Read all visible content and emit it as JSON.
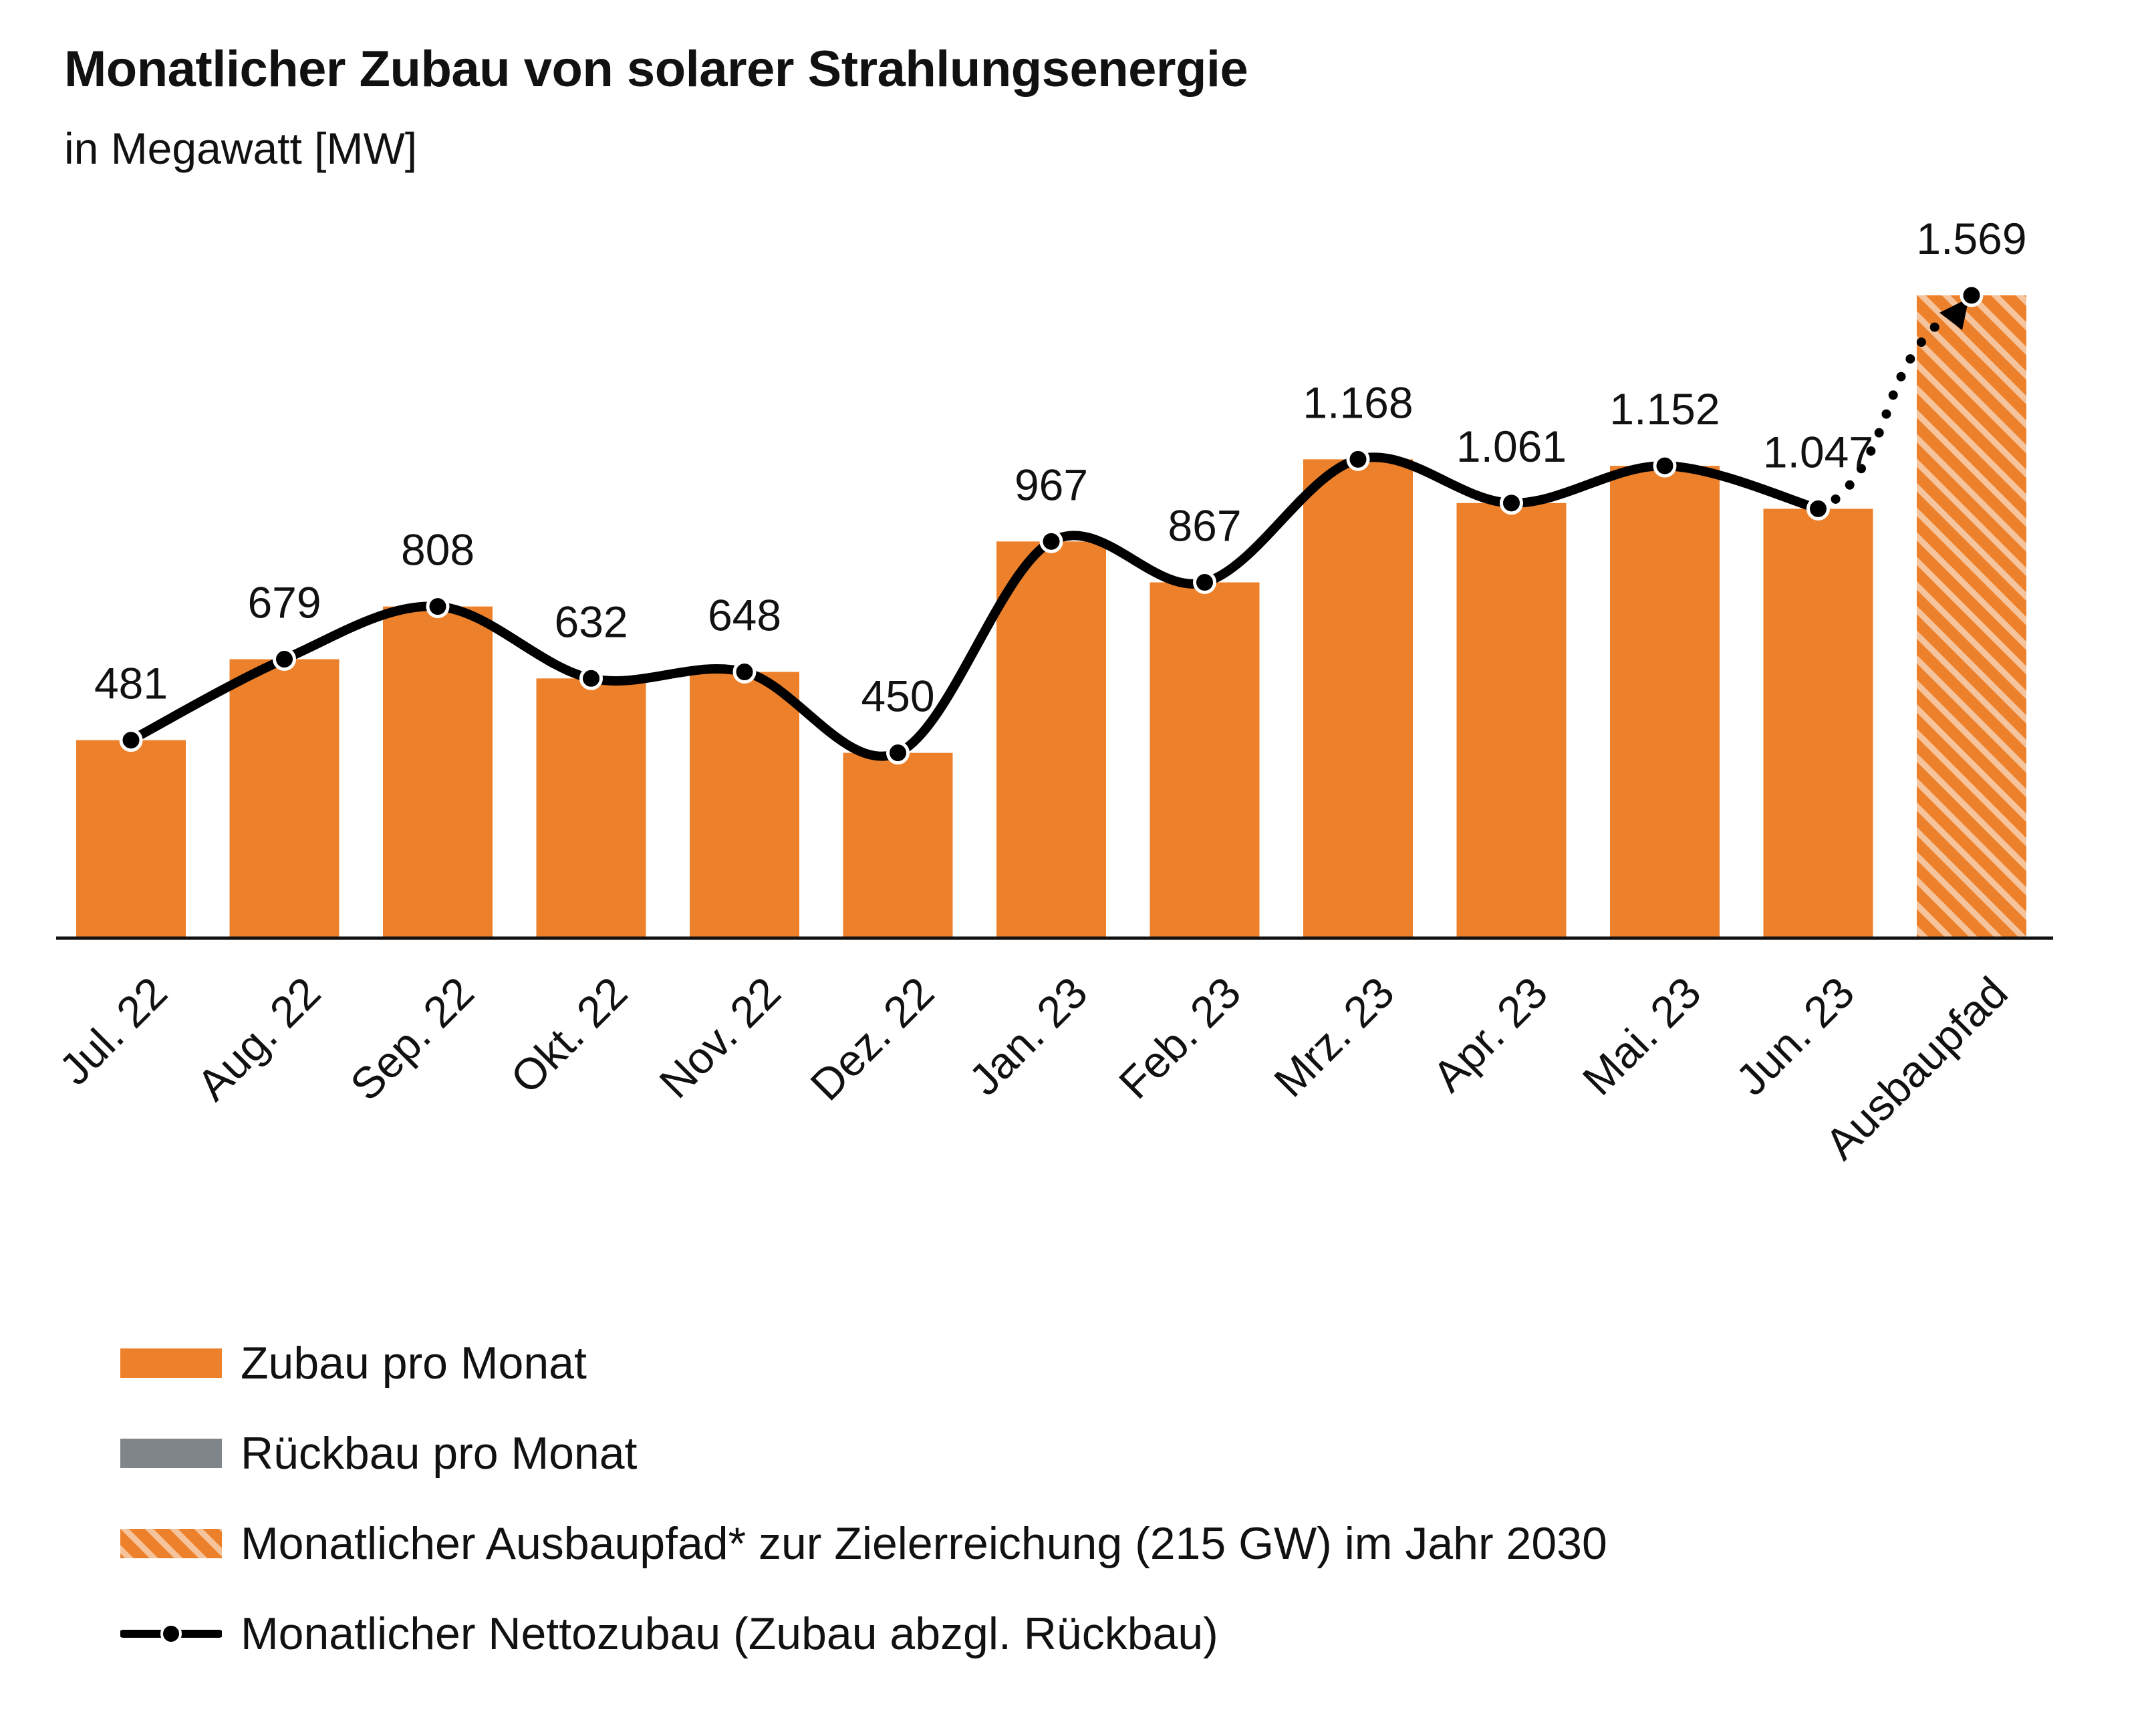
{
  "title": "Monatlicher Zubau von solarer Strahlungsenergie",
  "subtitle": "in Megawatt [MW]",
  "colors": {
    "bar": "#ed812b",
    "rueckbau": "#7f8589",
    "line": "#000000",
    "hatch_light": "#f6b98a"
  },
  "chart_data": {
    "type": "bar",
    "categories": [
      "Jul. 22",
      "Aug. 22",
      "Sep. 22",
      "Okt. 22",
      "Nov. 22",
      "Dez. 22",
      "Jan. 23",
      "Feb. 23",
      "Mrz. 23",
      "Apr. 23",
      "Mai. 23",
      "Jun. 23",
      "Ausbaupfad"
    ],
    "series": [
      {
        "name": "Zubau pro Monat",
        "values": [
          481,
          679,
          808,
          632,
          648,
          450,
          967,
          867,
          1168,
          1061,
          1152,
          1047,
          null
        ]
      },
      {
        "name": "Monatlicher Ausbaupfad* zur Zielerreichung (215 GW) im Jahr 2030",
        "values": [
          null,
          null,
          null,
          null,
          null,
          null,
          null,
          null,
          null,
          null,
          null,
          null,
          1569
        ]
      },
      {
        "name": "Monatlicher Nettozubau (Zubau abzgl. Rückbau)",
        "values": [
          481,
          679,
          808,
          632,
          648,
          450,
          967,
          867,
          1168,
          1061,
          1152,
          1047,
          1569
        ]
      }
    ],
    "labels": [
      "481",
      "679",
      "808",
      "632",
      "648",
      "450",
      "967",
      "867",
      "1.168",
      "1.061",
      "1.152",
      "1.047",
      "1.569"
    ],
    "ylim": [
      0,
      1569
    ],
    "grid": false,
    "legend_position": "bottom-left"
  },
  "legend": [
    {
      "label": "Zubau pro Monat",
      "kind": "bar"
    },
    {
      "label": "Rückbau pro Monat",
      "kind": "rueckbau"
    },
    {
      "label": "Monatlicher Ausbaupfad* zur Zielerreichung (215 GW) im Jahr 2030",
      "kind": "hatch"
    },
    {
      "label": "Monatlicher Nettozubau (Zubau abzgl. Rückbau)",
      "kind": "line"
    }
  ]
}
